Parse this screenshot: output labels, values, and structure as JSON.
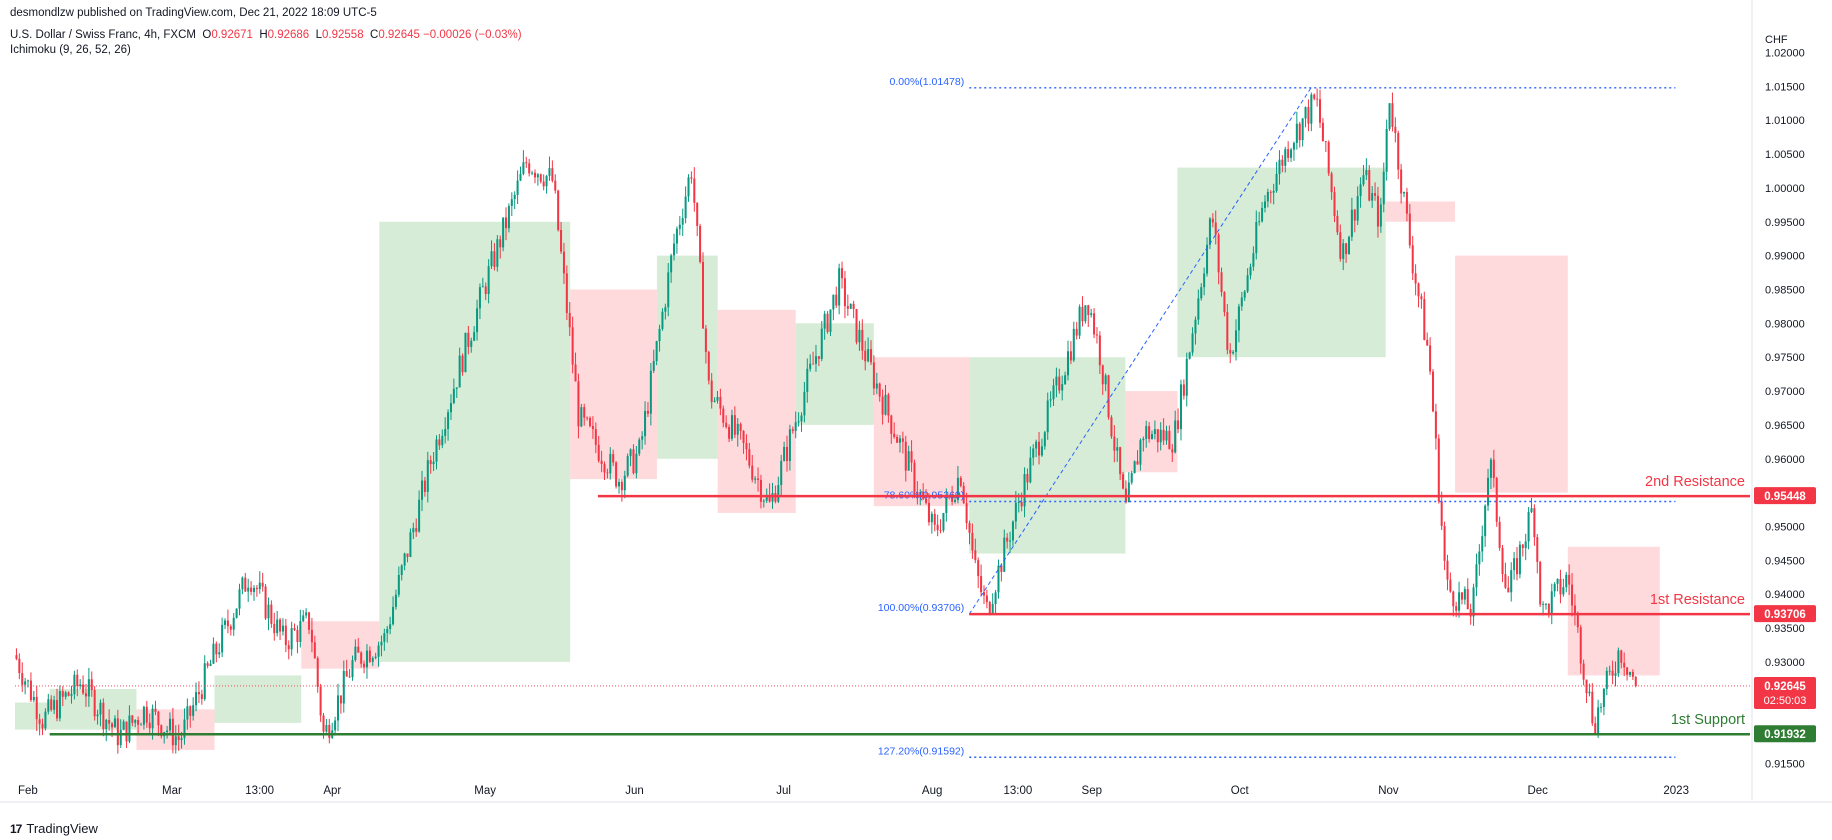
{
  "header": {
    "published": "desmondlzw published on TradingView.com, Dec 21, 2022 18:09 UTC-5",
    "symbol": "U.S. Dollar / Swiss Franc, 4h, FXCM",
    "o_label": "O",
    "o_value": "0.92671",
    "h_label": "H",
    "h_value": "0.92686",
    "l_label": "L",
    "l_value": "0.92558",
    "c_label": "C",
    "c_value": "0.92645",
    "change": "−0.00026 (−0.03%)",
    "indicator": "Ichimoku (9, 26, 52, 26)"
  },
  "footer": {
    "brand": "TradingView",
    "logo_glyph": "17"
  },
  "chart_data": {
    "type": "candlestick",
    "title": "U.S. Dollar / Swiss Franc, 4h, FXCM",
    "currency_label": "CHF",
    "ylim": [
      0.9133,
      1.0245
    ],
    "y_ticks": [
      {
        "value": 0.915,
        "label": "0.91500"
      },
      {
        "value": 0.92,
        "label": "0.92000"
      },
      {
        "value": 0.925,
        "label": "0.92500"
      },
      {
        "value": 0.93,
        "label": "0.93000"
      },
      {
        "value": 0.935,
        "label": "0.93500"
      },
      {
        "value": 0.94,
        "label": "0.94000"
      },
      {
        "value": 0.945,
        "label": "0.94500"
      },
      {
        "value": 0.95,
        "label": "0.95000"
      },
      {
        "value": 0.955,
        "label": "0.95500"
      },
      {
        "value": 0.96,
        "label": "0.96000"
      },
      {
        "value": 0.965,
        "label": "0.96500"
      },
      {
        "value": 0.97,
        "label": "0.97000"
      },
      {
        "value": 0.975,
        "label": "0.97500"
      },
      {
        "value": 0.98,
        "label": "0.98000"
      },
      {
        "value": 0.985,
        "label": "0.98500"
      },
      {
        "value": 0.99,
        "label": "0.99000"
      },
      {
        "value": 0.995,
        "label": "0.99500"
      },
      {
        "value": 1.0,
        "label": "1.00000"
      },
      {
        "value": 1.005,
        "label": "1.00500"
      },
      {
        "value": 1.01,
        "label": "1.01000"
      },
      {
        "value": 1.015,
        "label": "1.01500"
      },
      {
        "value": 1.02,
        "label": "1.02000"
      }
    ],
    "x_ticks": [
      {
        "t": 0.0,
        "label": "Feb"
      },
      {
        "t": 0.083,
        "label": "Mar"
      },
      {
        "t": 0.131,
        "label": "13:00"
      },
      {
        "t": 0.176,
        "label": "Apr"
      },
      {
        "t": 0.263,
        "label": "May"
      },
      {
        "t": 0.35,
        "label": "Jun"
      },
      {
        "t": 0.437,
        "label": "Jul"
      },
      {
        "t": 0.521,
        "label": "Aug"
      },
      {
        "t": 0.568,
        "label": "13:00"
      },
      {
        "t": 0.613,
        "label": "Sep"
      },
      {
        "t": 0.699,
        "label": "Oct"
      },
      {
        "t": 0.784,
        "label": "Nov"
      },
      {
        "t": 0.87,
        "label": "Dec"
      },
      {
        "t": 0.957,
        "label": "2023"
      }
    ],
    "price_path": [
      [
        0.0,
        0.931
      ],
      [
        0.016,
        0.9215
      ],
      [
        0.038,
        0.927
      ],
      [
        0.06,
        0.919
      ],
      [
        0.075,
        0.923
      ],
      [
        0.095,
        0.9185
      ],
      [
        0.11,
        0.928
      ],
      [
        0.135,
        0.943
      ],
      [
        0.155,
        0.933
      ],
      [
        0.17,
        0.936
      ],
      [
        0.178,
        0.919
      ],
      [
        0.195,
        0.93
      ],
      [
        0.213,
        0.9335
      ],
      [
        0.24,
        0.96
      ],
      [
        0.27,
        0.985
      ],
      [
        0.295,
        1.004
      ],
      [
        0.31,
        1.001
      ],
      [
        0.325,
        0.966
      ],
      [
        0.348,
        0.957
      ],
      [
        0.36,
        0.961
      ],
      [
        0.38,
        0.992
      ],
      [
        0.39,
        1.003
      ],
      [
        0.4,
        0.97
      ],
      [
        0.42,
        0.9615
      ],
      [
        0.435,
        0.953
      ],
      [
        0.455,
        0.97
      ],
      [
        0.475,
        0.986
      ],
      [
        0.495,
        0.972
      ],
      [
        0.515,
        0.959
      ],
      [
        0.53,
        0.949
      ],
      [
        0.545,
        0.958
      ],
      [
        0.553,
        0.944
      ],
      [
        0.56,
        0.9375
      ],
      [
        0.58,
        0.955
      ],
      [
        0.6,
        0.97
      ],
      [
        0.618,
        0.984
      ],
      [
        0.625,
        0.976
      ],
      [
        0.64,
        0.952
      ],
      [
        0.65,
        0.964
      ],
      [
        0.668,
        0.963
      ],
      [
        0.69,
        0.996
      ],
      [
        0.7,
        0.975
      ],
      [
        0.72,
        0.998
      ],
      [
        0.735,
        1.007
      ],
      [
        0.75,
        1.013
      ],
      [
        0.765,
        0.99
      ],
      [
        0.777,
        1.002
      ],
      [
        0.787,
        0.995
      ],
      [
        0.792,
        1.014
      ],
      [
        0.805,
        0.99
      ],
      [
        0.815,
        0.975
      ],
      [
        0.825,
        0.941
      ],
      [
        0.84,
        0.9375
      ],
      [
        0.85,
        0.96
      ],
      [
        0.86,
        0.9395
      ],
      [
        0.875,
        0.953
      ],
      [
        0.88,
        0.937
      ],
      [
        0.895,
        0.9425
      ],
      [
        0.91,
        0.921
      ],
      [
        0.925,
        0.932
      ],
      [
        0.935,
        0.9264
      ]
    ],
    "ichimoku_cloud": [
      {
        "t0": 0.0,
        "t1": 0.02,
        "span_a": 0.92,
        "span_b": 0.924,
        "color": "bullish"
      },
      {
        "t0": 0.02,
        "t1": 0.07,
        "span_a": 0.926,
        "span_b": 0.92,
        "color": "bullish"
      },
      {
        "t0": 0.07,
        "t1": 0.115,
        "span_a": 0.923,
        "span_b": 0.917,
        "color": "bearish"
      },
      {
        "t0": 0.115,
        "t1": 0.165,
        "span_a": 0.928,
        "span_b": 0.921,
        "color": "bullish"
      },
      {
        "t0": 0.165,
        "t1": 0.21,
        "span_a": 0.936,
        "span_b": 0.929,
        "color": "bearish"
      },
      {
        "t0": 0.21,
        "t1": 0.32,
        "span_a": 0.995,
        "span_b": 0.93,
        "color": "bullish"
      },
      {
        "t0": 0.32,
        "t1": 0.37,
        "span_a": 0.957,
        "span_b": 0.985,
        "color": "bearish"
      },
      {
        "t0": 0.37,
        "t1": 0.405,
        "span_a": 0.99,
        "span_b": 0.96,
        "color": "bullish"
      },
      {
        "t0": 0.405,
        "t1": 0.45,
        "span_a": 0.952,
        "span_b": 0.982,
        "color": "bearish"
      },
      {
        "t0": 0.45,
        "t1": 0.495,
        "span_a": 0.98,
        "span_b": 0.965,
        "color": "bullish"
      },
      {
        "t0": 0.495,
        "t1": 0.55,
        "span_a": 0.953,
        "span_b": 0.975,
        "color": "bearish"
      },
      {
        "t0": 0.55,
        "t1": 0.64,
        "span_a": 0.975,
        "span_b": 0.946,
        "color": "bullish"
      },
      {
        "t0": 0.64,
        "t1": 0.67,
        "span_a": 0.958,
        "span_b": 0.97,
        "color": "bearish"
      },
      {
        "t0": 0.67,
        "t1": 0.79,
        "span_a": 1.003,
        "span_b": 0.975,
        "color": "bullish"
      },
      {
        "t0": 0.79,
        "t1": 0.83,
        "span_a": 0.995,
        "span_b": 0.998,
        "color": "bearish"
      },
      {
        "t0": 0.83,
        "t1": 0.895,
        "span_a": 0.955,
        "span_b": 0.99,
        "color": "bearish"
      },
      {
        "t0": 0.895,
        "t1": 0.948,
        "span_a": 0.928,
        "span_b": 0.947,
        "color": "bearish"
      }
    ],
    "horizontal_levels": [
      {
        "name": "2nd Resistance",
        "label": "2nd Resistance",
        "value": 0.95448,
        "price_tag": "0.95448",
        "color": "#f23645",
        "t_start": 0.336
      },
      {
        "name": "1st Resistance",
        "label": "1st Resistance",
        "value": 0.93706,
        "price_tag": "0.93706",
        "color": "#f23645",
        "t_start": 0.55
      },
      {
        "name": "1st Support",
        "label": "1st Support",
        "value": 0.91932,
        "price_tag": "0.91932",
        "color": "#2e7d32",
        "t_start": 0.02
      }
    ],
    "fibonacci": {
      "t_start": 0.55,
      "t_end": 0.957,
      "anchor_top": 1.01478,
      "anchor_bottom": 0.93706,
      "levels": [
        {
          "ratio": 0.0,
          "value": 1.01478,
          "label": "0.00%(1.01478)"
        },
        {
          "ratio": 0.786,
          "value": 0.95369,
          "label": "78.60%(0.95369)"
        },
        {
          "ratio": 1.0,
          "value": 0.93706,
          "label": "100.00%(0.93706)"
        },
        {
          "ratio": 1.272,
          "value": 0.91592,
          "label": "127.20%(0.91592)"
        }
      ]
    },
    "trend_line": {
      "t0": 0.55,
      "v0": 0.93706,
      "t1": 0.747,
      "v1": 1.01478
    },
    "current_price": {
      "value": 0.92645,
      "label": "0.92645",
      "countdown": "02:50:03",
      "color": "#f23645"
    },
    "colors": {
      "up": "#089981",
      "down": "#f23645",
      "cloud_bull": "#c8e6c9",
      "cloud_bear": "#ffcdd2",
      "fib": "#2962ff",
      "axis_text": "#131722"
    }
  }
}
